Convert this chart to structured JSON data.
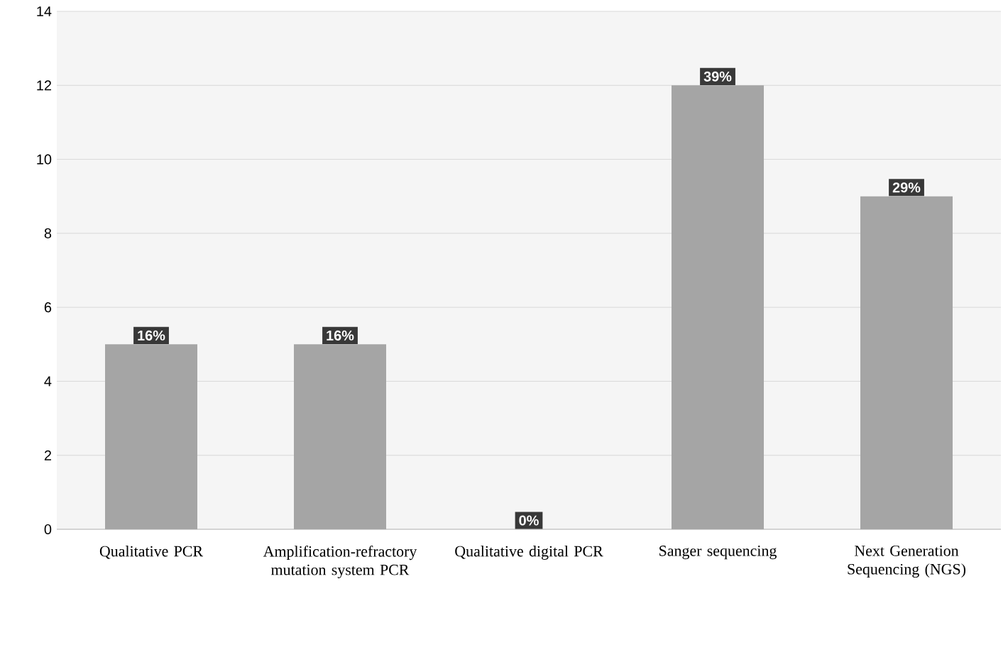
{
  "chart_data": {
    "type": "bar",
    "categories": [
      "Qualitative PCR",
      "Amplification-refractory mutation system PCR",
      "Qualitative digital PCR",
      "Sanger sequencing",
      "Next Generation Sequencing (NGS)"
    ],
    "values": [
      5,
      5,
      0,
      12,
      9
    ],
    "annotations": [
      {
        "text": "16%",
        "x": "Qualitative PCR",
        "y": 5
      },
      {
        "text": "16%",
        "x": "Amplification-refractory mutation system PCR",
        "y": 5
      },
      {
        "text": "0%",
        "x": "Qualitative digital PCR",
        "y": 0
      },
      {
        "text": "39%",
        "x": "Sanger sequencing",
        "y": 12
      },
      {
        "text": "29%",
        "x": "Next Generation Sequencing (NGS)",
        "y": 9
      }
    ],
    "color": "#a5a5a5",
    "ylim": [
      0,
      14
    ],
    "yticks": [
      0,
      2,
      4,
      6,
      8,
      10,
      12,
      14
    ],
    "grid": "y"
  }
}
